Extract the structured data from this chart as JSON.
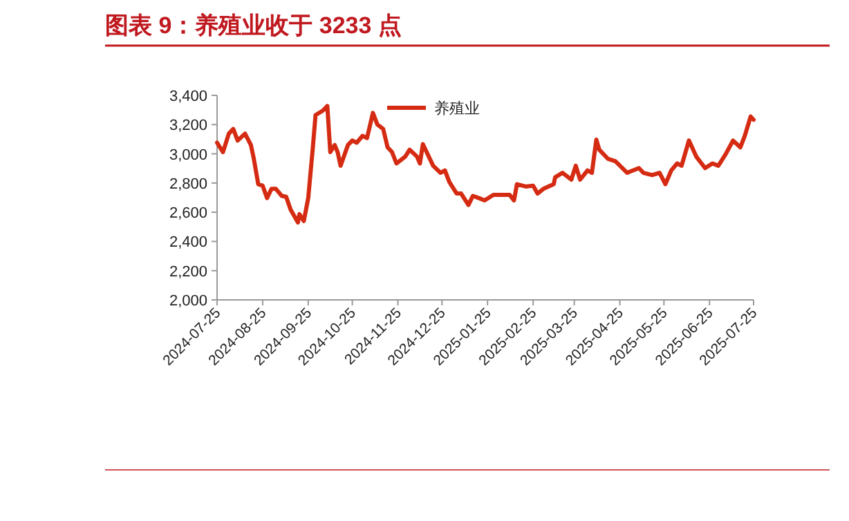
{
  "chart_data": {
    "type": "line",
    "title": "图表 9：养殖业收于 3233 点",
    "x": [
      "2024-07-25",
      "2024-07-29",
      "2024-08-02",
      "2024-08-05",
      "2024-08-08",
      "2024-08-13",
      "2024-08-17",
      "2024-08-19",
      "2024-08-22",
      "2024-08-25",
      "2024-08-28",
      "2024-08-31",
      "2024-09-03",
      "2024-09-07",
      "2024-09-10",
      "2024-09-13",
      "2024-09-18",
      "2024-09-19",
      "2024-09-22",
      "2024-09-25",
      "2024-09-28",
      "2024-09-30",
      "2024-10-05",
      "2024-10-08",
      "2024-10-10",
      "2024-10-13",
      "2024-10-15",
      "2024-10-17",
      "2024-10-22",
      "2024-10-25",
      "2024-10-28",
      "2024-11-01",
      "2024-11-04",
      "2024-11-08",
      "2024-11-11",
      "2024-11-15",
      "2024-11-18",
      "2024-11-21",
      "2024-11-24",
      "2024-11-30",
      "2024-12-03",
      "2024-12-08",
      "2024-12-10",
      "2024-12-12",
      "2024-12-16",
      "2024-12-19",
      "2024-12-24",
      "2024-12-27",
      "2024-12-30",
      "2025-01-04",
      "2025-01-07",
      "2025-01-12",
      "2025-01-15",
      "2025-01-19",
      "2025-01-23",
      "2025-01-29",
      "2025-02-09",
      "2025-02-12",
      "2025-02-14",
      "2025-02-20",
      "2025-02-25",
      "2025-02-28",
      "2025-03-04",
      "2025-03-11",
      "2025-03-12",
      "2025-03-17",
      "2025-03-23",
      "2025-03-26",
      "2025-03-29",
      "2025-04-03",
      "2025-04-06",
      "2025-04-09",
      "2025-04-11",
      "2025-04-17",
      "2025-04-22",
      "2025-04-30",
      "2025-05-08",
      "2025-05-11",
      "2025-05-17",
      "2025-05-22",
      "2025-05-26",
      "2025-05-30",
      "2025-06-03",
      "2025-06-06",
      "2025-06-11",
      "2025-06-16",
      "2025-06-22",
      "2025-06-27",
      "2025-07-01",
      "2025-07-06",
      "2025-07-11",
      "2025-07-16",
      "2025-07-19",
      "2025-07-23",
      "2025-07-25"
    ],
    "series": [
      {
        "name": "养殖业",
        "color": "#d52b12",
        "values": [
          3076,
          3012,
          3138,
          3170,
          3091,
          3138,
          3060,
          2965,
          2792,
          2782,
          2697,
          2760,
          2760,
          2712,
          2706,
          2618,
          2530,
          2587,
          2540,
          2697,
          3028,
          3265,
          3296,
          3327,
          3012,
          3060,
          3012,
          2918,
          3060,
          3091,
          3076,
          3123,
          3107,
          3280,
          3201,
          3170,
          3044,
          3012,
          2934,
          2981,
          3028,
          2981,
          2934,
          3066,
          2981,
          2918,
          2870,
          2886,
          2807,
          2728,
          2728,
          2650,
          2712,
          2697,
          2681,
          2719,
          2719,
          2681,
          2792,
          2776,
          2782,
          2728,
          2760,
          2792,
          2839,
          2870,
          2823,
          2918,
          2823,
          2886,
          2870,
          3097,
          3028,
          2965,
          2949,
          2870,
          2902,
          2870,
          2854,
          2870,
          2792,
          2886,
          2934,
          2918,
          3091,
          2981,
          2902,
          2934,
          2918,
          2997,
          3091,
          3044,
          3123,
          3255,
          3233
        ]
      }
    ],
    "xlim": [
      "2024-07-25",
      "2025-07-25"
    ],
    "xticks": [
      "2024-07-25",
      "2024-08-25",
      "2024-09-25",
      "2024-10-25",
      "2024-11-25",
      "2024-12-25",
      "2025-01-25",
      "2025-02-25",
      "2025-03-25",
      "2025-04-25",
      "2025-05-25",
      "2025-06-25",
      "2025-07-25"
    ],
    "ylim": [
      2000,
      3400
    ],
    "yticks": [
      {
        "value": 2000,
        "label": "2,000"
      },
      {
        "value": 2200,
        "label": "2,200"
      },
      {
        "value": 2400,
        "label": "2,400"
      },
      {
        "value": 2600,
        "label": "2,600"
      },
      {
        "value": 2800,
        "label": "2,800"
      },
      {
        "value": 3000,
        "label": "3,000"
      },
      {
        "value": 3200,
        "label": "3,200"
      },
      {
        "value": 3400,
        "label": "3,400"
      }
    ],
    "legend": "top",
    "grid": false,
    "marker": "none",
    "line_style": "solid"
  }
}
